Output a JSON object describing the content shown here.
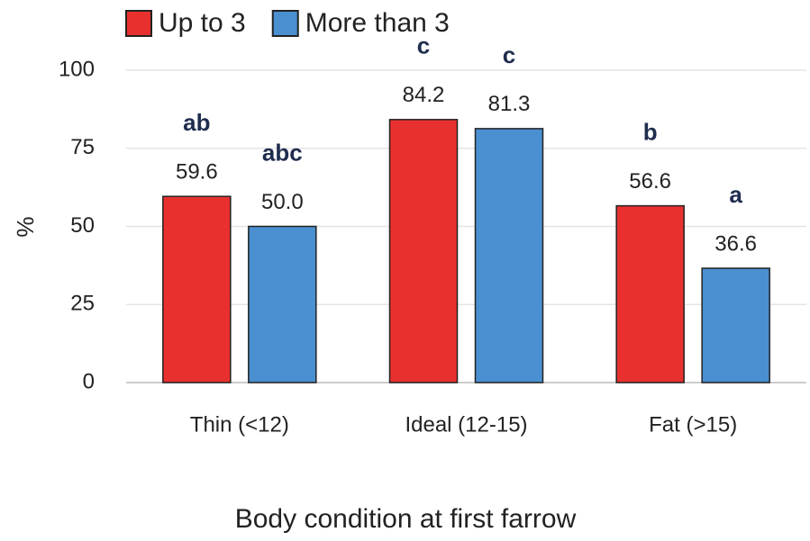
{
  "chart_data": {
    "type": "bar",
    "x_label": "Body condition at first farrow",
    "y_label": "%",
    "categories": [
      "Thin (<12)",
      "Ideal (12-15)",
      "Fat (>15)"
    ],
    "series": [
      {
        "name": "Up to 3",
        "color": "#e8312f",
        "values": [
          59.6,
          84.2,
          56.6
        ],
        "value_labels": [
          "59.6",
          "84.2",
          "56.6"
        ],
        "letters": [
          "ab",
          "c",
          "b"
        ]
      },
      {
        "name": "More than 3",
        "color": "#4a8fd0",
        "values": [
          50.0,
          81.3,
          36.6
        ],
        "value_labels": [
          "50.0",
          "81.3",
          "36.6"
        ],
        "letters": [
          "abc",
          "c",
          "a"
        ]
      }
    ],
    "ylim": [
      0,
      100
    ],
    "yticks": [
      0,
      25,
      50,
      75,
      100
    ],
    "grid": true,
    "legend": "top"
  }
}
